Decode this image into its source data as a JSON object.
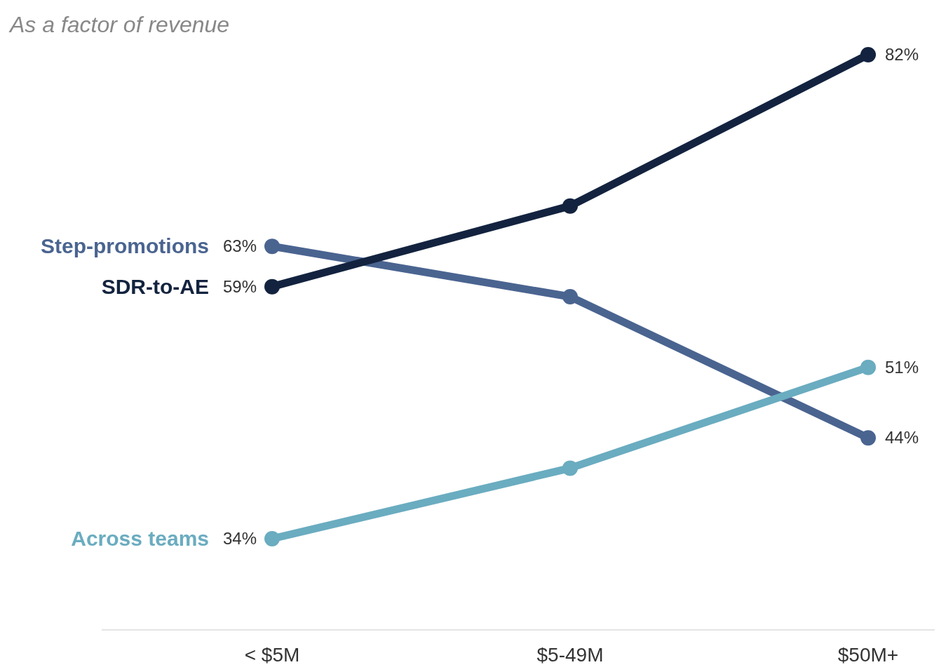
{
  "chart_data": {
    "type": "line",
    "subtitle": "As a factor of revenue",
    "categories": [
      "< $5M",
      "$5-49M",
      "$50M+"
    ],
    "marker": "circle",
    "line_style": "solid",
    "series": [
      {
        "name": "Step-promotions",
        "color": "#4a6490",
        "values": [
          63,
          58,
          44
        ],
        "value_labels": [
          "63%",
          null,
          "44%"
        ]
      },
      {
        "name": "SDR-to-AE",
        "color": "#13233f",
        "values": [
          59,
          67,
          82
        ],
        "value_labels": [
          "59%",
          null,
          "82%"
        ]
      },
      {
        "name": "Across teams",
        "color": "#6aacc0",
        "values": [
          34,
          41,
          51
        ],
        "value_labels": [
          "34%",
          null,
          "51%"
        ]
      }
    ]
  }
}
